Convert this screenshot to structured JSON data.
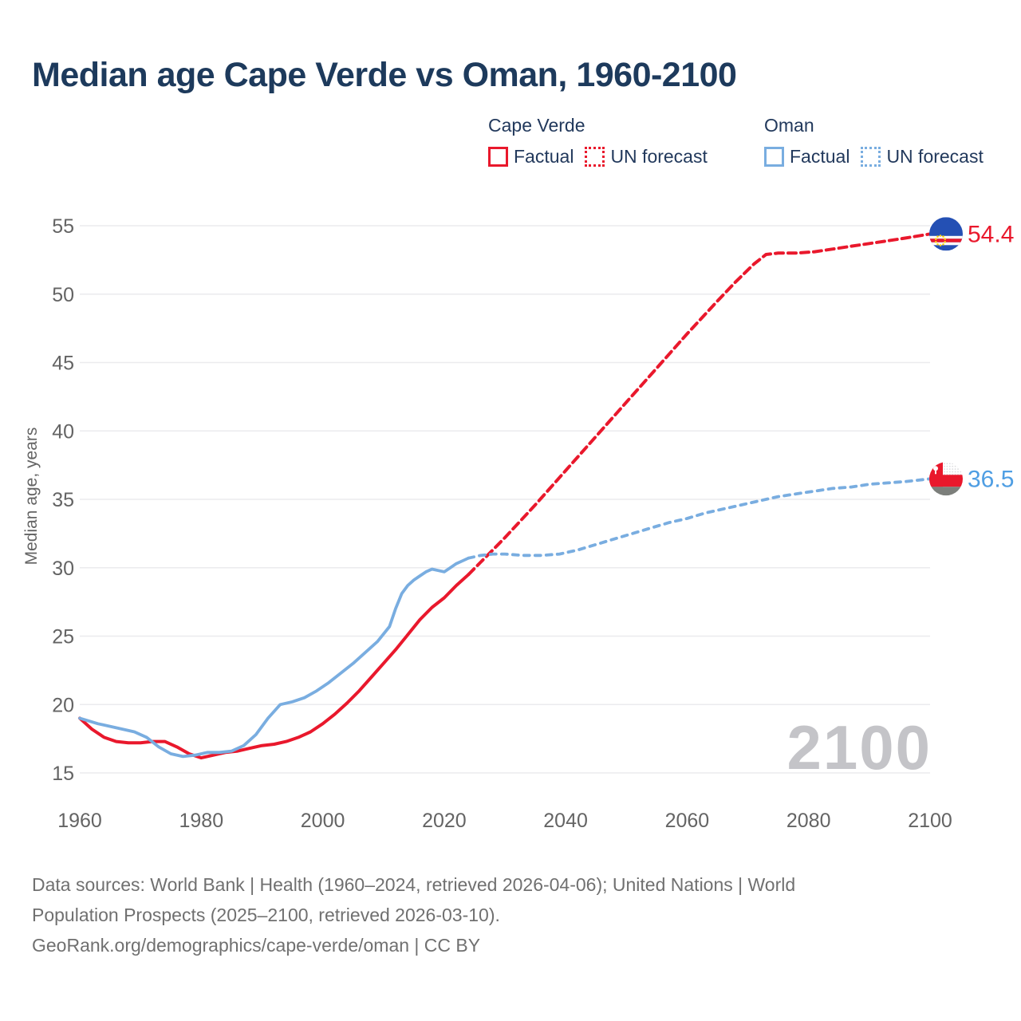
{
  "title": "Median age Cape Verde vs Oman, 1960-2100",
  "legend": {
    "groups": [
      {
        "name": "Cape Verde",
        "items": [
          {
            "label": "Factual",
            "style": "solid"
          },
          {
            "label": "UN forecast",
            "style": "dotted"
          }
        ]
      },
      {
        "name": "Oman",
        "items": [
          {
            "label": "Factual",
            "style": "solid"
          },
          {
            "label": "UN forecast",
            "style": "dotted"
          }
        ]
      }
    ]
  },
  "colors": {
    "cape_verde": "#e9182c",
    "oman": "#79ade0",
    "oman_label": "#4f9ee3",
    "title": "#1d3a5c",
    "legend_text": "#22395c",
    "axis_text": "#646464",
    "grid": "#ebebee",
    "watermark": "#c4c4c8",
    "footer_text": "#707070",
    "flag_cv_blue": "#2450b4",
    "flag_cv_star": "#f7d116",
    "flag_oman_red": "#e9182c",
    "flag_oman_gray": "#7c7f7b"
  },
  "chart_data": {
    "type": "line",
    "title": "Median age Cape Verde vs Oman, 1960-2100",
    "xlabel": "",
    "ylabel": "Median age, years",
    "ylim": [
      15,
      55
    ],
    "xlim": [
      1960,
      2100
    ],
    "yticks": [
      15,
      20,
      25,
      30,
      35,
      40,
      45,
      50,
      55
    ],
    "xticks": [
      1960,
      1980,
      2000,
      2020,
      2040,
      2060,
      2080,
      2100
    ],
    "grid": "horizontal",
    "legend_position": "top",
    "watermark": "2100",
    "series": [
      {
        "id": "cape-verde-factual",
        "name": "Cape Verde Factual",
        "country": "cape_verde",
        "style": "solid",
        "points": [
          [
            1960,
            19.0
          ],
          [
            1962,
            18.2
          ],
          [
            1964,
            17.6
          ],
          [
            1966,
            17.3
          ],
          [
            1968,
            17.2
          ],
          [
            1970,
            17.2
          ],
          [
            1972,
            17.3
          ],
          [
            1974,
            17.3
          ],
          [
            1976,
            16.9
          ],
          [
            1978,
            16.4
          ],
          [
            1980,
            16.1
          ],
          [
            1982,
            16.3
          ],
          [
            1984,
            16.5
          ],
          [
            1986,
            16.6
          ],
          [
            1988,
            16.8
          ],
          [
            1990,
            17.0
          ],
          [
            1992,
            17.1
          ],
          [
            1994,
            17.3
          ],
          [
            1996,
            17.6
          ],
          [
            1998,
            18.0
          ],
          [
            2000,
            18.6
          ],
          [
            2002,
            19.3
          ],
          [
            2004,
            20.1
          ],
          [
            2006,
            21.0
          ],
          [
            2008,
            22.0
          ],
          [
            2010,
            23.0
          ],
          [
            2012,
            24.0
          ],
          [
            2014,
            25.1
          ],
          [
            2016,
            26.2
          ],
          [
            2018,
            27.1
          ],
          [
            2020,
            27.8
          ],
          [
            2022,
            28.7
          ],
          [
            2024,
            29.5
          ]
        ]
      },
      {
        "id": "cape-verde-forecast",
        "name": "Cape Verde UN forecast",
        "country": "cape_verde",
        "style": "dashed",
        "points": [
          [
            2024,
            29.5
          ],
          [
            2026,
            30.4
          ],
          [
            2028,
            31.3
          ],
          [
            2030,
            32.2
          ],
          [
            2035,
            34.6
          ],
          [
            2040,
            37.1
          ],
          [
            2045,
            39.6
          ],
          [
            2050,
            42.1
          ],
          [
            2055,
            44.6
          ],
          [
            2060,
            47.1
          ],
          [
            2065,
            49.5
          ],
          [
            2068,
            50.9
          ],
          [
            2071,
            52.2
          ],
          [
            2073,
            52.9
          ],
          [
            2075,
            53.0
          ],
          [
            2078,
            53.0
          ],
          [
            2081,
            53.1
          ],
          [
            2084,
            53.3
          ],
          [
            2087,
            53.5
          ],
          [
            2090,
            53.7
          ],
          [
            2093,
            53.9
          ],
          [
            2096,
            54.1
          ],
          [
            2100,
            54.4
          ]
        ]
      },
      {
        "id": "oman-factual",
        "name": "Oman Factual",
        "country": "oman",
        "style": "solid",
        "points": [
          [
            1960,
            19.0
          ],
          [
            1963,
            18.6
          ],
          [
            1966,
            18.3
          ],
          [
            1969,
            18.0
          ],
          [
            1971,
            17.6
          ],
          [
            1973,
            16.9
          ],
          [
            1975,
            16.4
          ],
          [
            1977,
            16.2
          ],
          [
            1979,
            16.3
          ],
          [
            1981,
            16.5
          ],
          [
            1983,
            16.5
          ],
          [
            1985,
            16.6
          ],
          [
            1987,
            17.0
          ],
          [
            1989,
            17.8
          ],
          [
            1991,
            19.0
          ],
          [
            1993,
            20.0
          ],
          [
            1995,
            20.2
          ],
          [
            1997,
            20.5
          ],
          [
            1999,
            21.0
          ],
          [
            2001,
            21.6
          ],
          [
            2003,
            22.3
          ],
          [
            2005,
            23.0
          ],
          [
            2007,
            23.8
          ],
          [
            2009,
            24.6
          ],
          [
            2011,
            25.7
          ],
          [
            2012,
            27.0
          ],
          [
            2013,
            28.1
          ],
          [
            2014,
            28.7
          ],
          [
            2015,
            29.1
          ],
          [
            2016,
            29.4
          ],
          [
            2017,
            29.7
          ],
          [
            2018,
            29.9
          ],
          [
            2019,
            29.8
          ],
          [
            2020,
            29.7
          ],
          [
            2021,
            30.0
          ],
          [
            2022,
            30.3
          ],
          [
            2023,
            30.5
          ],
          [
            2024,
            30.7
          ]
        ]
      },
      {
        "id": "oman-forecast",
        "name": "Oman UN forecast",
        "country": "oman",
        "style": "dashed",
        "points": [
          [
            2024,
            30.7
          ],
          [
            2026,
            30.9
          ],
          [
            2028,
            31.0
          ],
          [
            2030,
            31.0
          ],
          [
            2033,
            30.9
          ],
          [
            2036,
            30.9
          ],
          [
            2039,
            31.0
          ],
          [
            2042,
            31.3
          ],
          [
            2045,
            31.7
          ],
          [
            2048,
            32.1
          ],
          [
            2051,
            32.5
          ],
          [
            2054,
            32.9
          ],
          [
            2057,
            33.3
          ],
          [
            2060,
            33.6
          ],
          [
            2063,
            34.0
          ],
          [
            2066,
            34.3
          ],
          [
            2069,
            34.6
          ],
          [
            2072,
            34.9
          ],
          [
            2075,
            35.2
          ],
          [
            2078,
            35.4
          ],
          [
            2081,
            35.6
          ],
          [
            2084,
            35.8
          ],
          [
            2087,
            35.9
          ],
          [
            2090,
            36.1
          ],
          [
            2093,
            36.2
          ],
          [
            2096,
            36.3
          ],
          [
            2100,
            36.5
          ]
        ]
      }
    ],
    "end_markers": [
      {
        "series": "cape-verde-forecast",
        "flag": "cape-verde",
        "value": 54.4,
        "label": "54.4"
      },
      {
        "series": "oman-forecast",
        "flag": "oman",
        "value": 36.5,
        "label": "36.5"
      }
    ]
  },
  "footer": {
    "lines": [
      "Data sources: World Bank | Health (1960–2024, retrieved 2026-04-06); United Nations | World",
      "Population Prospects (2025–2100, retrieved 2026-03-10).",
      "GeoRank.org/demographics/cape-verde/oman | CC BY"
    ]
  }
}
